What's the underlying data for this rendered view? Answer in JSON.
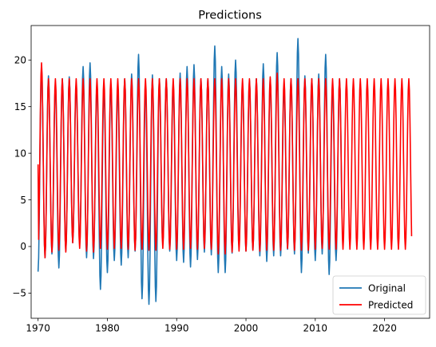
{
  "chart_data": {
    "type": "line",
    "title": "Predictions",
    "xlabel": "",
    "ylabel": "",
    "xlim": [
      1969.0,
      2026.5
    ],
    "ylim": [
      -7.7,
      23.7
    ],
    "xticks": [
      1970,
      1980,
      1990,
      2000,
      2010,
      2020
    ],
    "yticks": [
      -5,
      0,
      5,
      10,
      15,
      20
    ],
    "grid": false,
    "legend": "lower-right",
    "series": [
      {
        "name": "Original",
        "color": "#1f77b4",
        "x_start": 1970,
        "x_end": 2013.9,
        "annual_max": [
          19.2,
          18.3,
          17.4,
          18.0,
          18.2,
          17.5,
          19.3,
          19.7,
          17.5,
          17.0,
          17.3,
          17.0,
          18.0,
          18.5,
          20.6,
          17.3,
          18.4,
          18.0,
          18.0,
          17.2,
          18.6,
          19.3,
          19.5,
          18.0,
          18.0,
          21.5,
          19.3,
          18.5,
          20.0,
          17.5,
          17.8,
          18.0,
          19.6,
          18.0,
          20.8,
          17.0,
          18.0,
          22.3,
          18.3,
          18.0,
          18.5,
          20.6,
          17.2,
          18.0,
          19.7
        ],
        "annual_min": [
          -2.7,
          -1.2,
          -0.8,
          -2.3,
          -0.5,
          0.4,
          0.3,
          -1.2,
          -1.3,
          -4.6,
          -2.8,
          -1.5,
          -2.0,
          -1.2,
          -0.5,
          -5.6,
          -6.2,
          -5.9,
          0.3,
          -0.5,
          -1.5,
          -1.7,
          -2.2,
          -1.4,
          -0.6,
          -0.9,
          -2.8,
          -2.8,
          -0.7,
          0.0,
          -0.5,
          -0.4,
          -1.0,
          -1.6,
          -1.0,
          -1.0,
          -0.3,
          -0.8,
          -2.8,
          -0.7,
          -1.5,
          -0.8,
          -3.0,
          -1.5,
          -0.7
        ]
      },
      {
        "name": "Predicted",
        "color": "#ff0000",
        "x_start": 1970,
        "x_end": 2023.9,
        "start_value": 8.8,
        "annual_max": [
          19.7,
          18.0,
          18.0,
          18.0,
          18.0,
          18.0,
          18.0,
          18.0,
          18.0,
          18.0,
          18.0,
          18.0,
          18.0,
          18.0,
          18.0,
          18.0,
          18.0,
          18.0,
          18.0,
          18.0,
          18.0,
          18.0,
          18.0,
          18.0,
          18.0,
          18.0,
          18.0,
          18.0,
          18.0,
          18.0,
          18.0,
          18.0,
          18.0,
          18.2,
          18.6,
          18.0,
          18.0,
          18.0,
          18.0,
          18.0,
          18.0,
          18.0,
          18.0,
          18.0,
          18.0,
          18.0,
          18.0,
          18.0,
          18.0,
          18.0,
          18.0,
          18.0,
          18.0,
          18.0
        ],
        "annual_min": [
          -0.6,
          -1.2,
          -0.6,
          -0.4,
          -0.6,
          0.4,
          -0.2,
          -0.5,
          -0.6,
          -0.2,
          -0.3,
          -0.2,
          -0.2,
          -0.3,
          -0.4,
          -0.3,
          -0.4,
          -0.4,
          -0.2,
          -0.3,
          -0.3,
          -0.3,
          -0.2,
          -0.3,
          -0.2,
          -0.3,
          -0.8,
          -0.8,
          -0.6,
          -0.5,
          -0.5,
          -0.4,
          -0.5,
          -0.4,
          -0.4,
          -0.4,
          -0.2,
          -0.4,
          -0.4,
          -0.4,
          -0.3,
          -0.2,
          -0.3,
          -0.3,
          -0.3,
          -0.3,
          -0.3,
          -0.3,
          -0.3,
          -0.3,
          -0.3,
          -0.3,
          -0.3,
          -0.3
        ],
        "end_value": 1.1
      }
    ]
  }
}
